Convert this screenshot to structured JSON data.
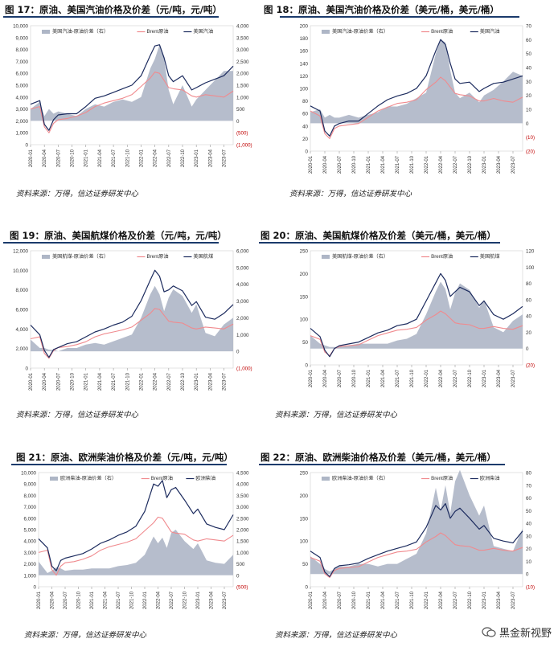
{
  "figures": [
    {
      "id": "f17",
      "title": "图 17：原油、美国汽油价格及价差（元/吨，元/吨）",
      "source": "资料来源：万得，信达证券研发中心"
    },
    {
      "id": "f18",
      "title": "图 18：原油、美国汽油价格及价差（美元/桶，美元/桶）",
      "source": "资料来源：万得，信达证券研发中心"
    },
    {
      "id": "f19",
      "title": "图 19：原油、美国航煤价格及价差（元/吨，元/吨）",
      "source": "资料来源：万得，信达证券研发中心"
    },
    {
      "id": "f20",
      "title": "图 20：原油、美国航煤价格及价差（美元/桶，美元/桶）",
      "source": "资料来源：万得，信达证券研发中心"
    },
    {
      "id": "f21",
      "title": "图 21：原油、欧洲柴油价格及价差（元/吨，元/吨）",
      "source": "资料来源：万得，信达证券研发中心"
    },
    {
      "id": "f22",
      "title": "图 22：原油、欧洲柴油价格及价差（美元/桶，美元/桶）",
      "source": "资料来源：万得，信达证券研发中心"
    }
  ],
  "watermark": "黑金新视野",
  "colors": {
    "spread": "#aeb6c6",
    "brent": "#f08a8e",
    "product": "#1c2b5e",
    "title_bar": "#1a3a6b"
  },
  "x_tick_labels": [
    "2020-01",
    "2020-04",
    "2020-07",
    "2020-10",
    "2021-01",
    "2021-04",
    "2021-07",
    "2021-10",
    "2022-01",
    "2022-04",
    "2022-07",
    "2022-10",
    "2023-01",
    "2023-04",
    "2023-07"
  ],
  "chart_data": [
    {
      "id": "f17",
      "type": "area",
      "legend": [
        "美国汽油-原油价差（右）",
        "Brent原油",
        "美国汽油"
      ],
      "left_ticks": [
        "10,000",
        "9,000",
        "8,000",
        "7,000",
        "6,000",
        "5,000",
        "4,000",
        "3,000",
        "2,000",
        "1,000",
        "0"
      ],
      "right_ticks": [
        "4,000",
        "3,500",
        "3,000",
        "2,500",
        "2,000",
        "1,500",
        "1,000",
        "500",
        "0",
        "(500)",
        "(1,000)"
      ],
      "ylim_left": [
        0,
        10000
      ],
      "ylim_right": [
        -1000,
        4000
      ],
      "x_months": [
        0,
        2,
        3,
        4,
        5,
        6,
        8,
        10,
        12,
        14,
        16,
        18,
        20,
        22,
        24,
        26,
        27,
        28,
        29,
        30,
        31,
        33,
        35,
        36,
        38,
        40,
        42,
        44
      ],
      "series": [
        {
          "name": "美国汽油",
          "axis": "left",
          "values": [
            3400,
            3700,
            1700,
            1200,
            2100,
            2500,
            2600,
            2600,
            3200,
            3900,
            4100,
            4400,
            4700,
            5000,
            5800,
            7500,
            8300,
            8400,
            7300,
            5800,
            5300,
            5800,
            4600,
            4800,
            5200,
            5500,
            5800,
            6600
          ]
        },
        {
          "name": "Brent原油",
          "axis": "left",
          "values": [
            3000,
            3200,
            1500,
            1000,
            1800,
            2100,
            2200,
            2400,
            2700,
            3200,
            3500,
            3700,
            3900,
            4200,
            4900,
            5600,
            6100,
            6000,
            5400,
            4800,
            4700,
            4600,
            4100,
            4000,
            4200,
            4100,
            4000,
            4500
          ]
        },
        {
          "name": "美国汽油-原油价差（右）",
          "axis": "right",
          "values": [
            500,
            800,
            200,
            500,
            300,
            400,
            300,
            200,
            500,
            700,
            600,
            800,
            900,
            800,
            1000,
            2200,
            2600,
            3200,
            2600,
            1300,
            700,
            1500,
            600,
            900,
            1300,
            1700,
            2100,
            2100
          ]
        }
      ]
    },
    {
      "id": "f18",
      "type": "area",
      "legend": [
        "美国汽油-原油价差（右）",
        "Brent原油",
        "美国汽油"
      ],
      "left_ticks": [
        "200",
        "180",
        "160",
        "140",
        "120",
        "100",
        "80",
        "60",
        "40",
        "20",
        "0"
      ],
      "right_ticks": [
        "70",
        "60",
        "50",
        "40",
        "30",
        "20",
        "10",
        "0",
        "(10)",
        "(20)"
      ],
      "ylim_left": [
        0,
        200
      ],
      "ylim_right": [
        -20,
        70
      ],
      "x_months": [
        0,
        2,
        3,
        4,
        5,
        6,
        8,
        10,
        12,
        14,
        16,
        18,
        20,
        22,
        24,
        26,
        27,
        28,
        29,
        30,
        31,
        33,
        35,
        36,
        38,
        40,
        42,
        44
      ],
      "series": [
        {
          "name": "美国汽油",
          "axis": "left",
          "values": [
            72,
            64,
            32,
            24,
            40,
            44,
            48,
            48,
            60,
            72,
            82,
            88,
            92,
            100,
            120,
            160,
            178,
            170,
            140,
            115,
            108,
            110,
            95,
            100,
            108,
            110,
            115,
            120
          ]
        },
        {
          "name": "Brent原油",
          "axis": "left",
          "values": [
            64,
            56,
            28,
            20,
            36,
            40,
            42,
            44,
            54,
            64,
            70,
            76,
            78,
            82,
            98,
            110,
            118,
            112,
            102,
            92,
            90,
            88,
            80,
            80,
            84,
            80,
            78,
            86
          ]
        },
        {
          "name": "美国汽油-原油价差（右）",
          "axis": "right",
          "values": [
            8,
            10,
            4,
            6,
            4,
            4,
            6,
            4,
            6,
            8,
            12,
            12,
            14,
            18,
            22,
            50,
            60,
            58,
            38,
            22,
            18,
            22,
            15,
            20,
            24,
            30,
            37,
            34
          ]
        }
      ]
    },
    {
      "id": "f19",
      "type": "area",
      "legend": [
        "美国航煤-原油价差（右）",
        "Brent原油",
        "美国航煤"
      ],
      "left_ticks": [
        "12,000",
        "10,000",
        "8,000",
        "6,000",
        "4,000",
        "2,000",
        "0"
      ],
      "right_ticks": [
        "6,000",
        "5,000",
        "4,000",
        "3,000",
        "2,000",
        "1,000",
        "0",
        "(1,000)"
      ],
      "ylim_left": [
        0,
        12000
      ],
      "ylim_right": [
        -1000,
        6000
      ],
      "x_months": [
        0,
        2,
        3,
        4,
        5,
        6,
        8,
        10,
        12,
        14,
        16,
        18,
        20,
        22,
        24,
        26,
        27,
        28,
        29,
        30,
        31,
        33,
        35,
        36,
        38,
        40,
        42,
        44
      ],
      "series": [
        {
          "name": "美国航煤",
          "axis": "left",
          "values": [
            4400,
            3400,
            1800,
            1100,
            1900,
            2100,
            2500,
            2700,
            3200,
            3700,
            4000,
            4400,
            4700,
            5300,
            6900,
            9000,
            10000,
            9400,
            7800,
            8000,
            8400,
            7900,
            6400,
            6800,
            5200,
            5000,
            5600,
            6500
          ]
        },
        {
          "name": "Brent原油",
          "axis": "left",
          "values": [
            3000,
            3200,
            1500,
            1000,
            1800,
            2100,
            2200,
            2400,
            2700,
            3200,
            3500,
            3700,
            3900,
            4200,
            4900,
            5600,
            6100,
            6000,
            5400,
            4800,
            4700,
            4600,
            4100,
            4000,
            4200,
            4100,
            4000,
            4500
          ]
        },
        {
          "name": "美国航煤-原油价差（右）",
          "axis": "right",
          "values": [
            700,
            200,
            200,
            100,
            100,
            0,
            200,
            200,
            400,
            500,
            400,
            600,
            800,
            1000,
            2000,
            3400,
            3900,
            3400,
            2400,
            3200,
            3700,
            3300,
            2300,
            2800,
            1100,
            900,
            1600,
            2000
          ]
        }
      ]
    },
    {
      "id": "f20",
      "type": "area",
      "legend": [
        "美国航煤-原油价差（右）",
        "Brent原油",
        "美国航煤"
      ],
      "left_ticks": [
        "250",
        "200",
        "150",
        "100",
        "50",
        "0"
      ],
      "right_ticks": [
        "120",
        "100",
        "80",
        "60",
        "40",
        "20",
        "0",
        "(20)"
      ],
      "ylim_left": [
        0,
        250
      ],
      "ylim_right": [
        -20,
        120
      ],
      "x_months": [
        0,
        2,
        3,
        4,
        5,
        6,
        8,
        10,
        12,
        14,
        16,
        18,
        20,
        22,
        24,
        26,
        27,
        28,
        29,
        30,
        31,
        33,
        35,
        36,
        38,
        40,
        42,
        44
      ],
      "series": [
        {
          "name": "美国航煤",
          "axis": "left",
          "values": [
            80,
            62,
            32,
            18,
            36,
            42,
            46,
            50,
            60,
            70,
            76,
            86,
            90,
            100,
            140,
            180,
            200,
            185,
            150,
            160,
            170,
            160,
            130,
            140,
            110,
            100,
            112,
            128
          ]
        },
        {
          "name": "Brent原油",
          "axis": "left",
          "values": [
            64,
            56,
            28,
            20,
            36,
            40,
            42,
            44,
            54,
            64,
            70,
            76,
            78,
            82,
            98,
            110,
            118,
            112,
            102,
            92,
            90,
            88,
            80,
            80,
            84,
            80,
            78,
            86
          ]
        },
        {
          "name": "美国航煤-原油价差（右）",
          "axis": "right",
          "values": [
            16,
            6,
            4,
            2,
            2,
            2,
            4,
            6,
            6,
            6,
            6,
            10,
            12,
            18,
            42,
            70,
            82,
            73,
            48,
            68,
            80,
            72,
            50,
            60,
            26,
            20,
            34,
            42
          ]
        }
      ]
    },
    {
      "id": "f21",
      "type": "area",
      "legend": [
        "欧洲柴油-原油价差（右）",
        "Brent原油",
        "欧洲柴油"
      ],
      "left_ticks": [
        "10,000",
        "9,000",
        "8,000",
        "7,000",
        "6,000",
        "5,000",
        "4,000",
        "3,000",
        "2,000",
        "1,000",
        "0"
      ],
      "right_ticks": [
        "4,500",
        "4,000",
        "3,500",
        "3,000",
        "2,500",
        "2,000",
        "1,500",
        "1,000",
        "500",
        "0",
        "(500)"
      ],
      "ylim_left": [
        0,
        10000
      ],
      "ylim_right": [
        -500,
        4500
      ],
      "x_months": [
        0,
        2,
        3,
        4,
        5,
        6,
        8,
        10,
        12,
        14,
        16,
        18,
        20,
        22,
        24,
        26,
        27,
        28,
        29,
        30,
        31,
        33,
        35,
        36,
        38,
        40,
        42,
        44
      ],
      "series": [
        {
          "name": "欧洲柴油",
          "axis": "left",
          "values": [
            4200,
            3400,
            1800,
            1400,
            2300,
            2500,
            2700,
            2900,
            3300,
            3800,
            4100,
            4500,
            4800,
            5300,
            6600,
            9000,
            8800,
            9300,
            7800,
            8500,
            8700,
            7600,
            6400,
            6800,
            5500,
            5200,
            5000,
            6300
          ]
        },
        {
          "name": "Brent原油",
          "axis": "left",
          "values": [
            3000,
            3200,
            1500,
            1000,
            1800,
            2100,
            2200,
            2400,
            2700,
            3200,
            3500,
            3700,
            3900,
            4200,
            4900,
            5600,
            6100,
            6000,
            5400,
            4800,
            4700,
            4600,
            4100,
            4000,
            4200,
            4100,
            4000,
            4500
          ]
        },
        {
          "name": "欧洲柴油-原油价差（右）",
          "axis": "right",
          "values": [
            600,
            100,
            200,
            350,
            300,
            200,
            250,
            250,
            300,
            300,
            300,
            400,
            450,
            550,
            900,
            1700,
            1400,
            1650,
            1200,
            1850,
            2000,
            1500,
            1150,
            1400,
            650,
            550,
            500,
            900
          ]
        }
      ]
    },
    {
      "id": "f22",
      "type": "area",
      "legend": [
        "欧洲柴油-原油价差（右）",
        "Brent原油",
        "欧洲柴油"
      ],
      "left_ticks": [
        "250",
        "200",
        "150",
        "100",
        "50",
        "0"
      ],
      "right_ticks": [
        "80",
        "70",
        "60",
        "50",
        "40",
        "30",
        "20",
        "10",
        "0",
        "(10)"
      ],
      "ylim_left": [
        0,
        250
      ],
      "ylim_right": [
        -10,
        80
      ],
      "x_months": [
        0,
        2,
        3,
        4,
        5,
        6,
        8,
        10,
        12,
        14,
        16,
        18,
        20,
        22,
        24,
        26,
        27,
        28,
        29,
        30,
        31,
        33,
        35,
        36,
        38,
        40,
        42,
        44
      ],
      "series": [
        {
          "name": "欧洲柴油",
          "axis": "left",
          "values": [
            78,
            64,
            32,
            22,
            40,
            46,
            48,
            52,
            62,
            70,
            78,
            84,
            90,
            98,
            130,
            178,
            168,
            182,
            150,
            165,
            172,
            150,
            126,
            134,
            106,
            100,
            96,
            122
          ]
        },
        {
          "name": "Brent原油",
          "axis": "left",
          "values": [
            64,
            56,
            28,
            20,
            36,
            40,
            42,
            44,
            54,
            64,
            70,
            76,
            78,
            82,
            98,
            110,
            118,
            112,
            102,
            92,
            90,
            88,
            80,
            80,
            84,
            80,
            78,
            86
          ]
        },
        {
          "name": "欧洲柴油-原油价差（右）",
          "axis": "right",
          "values": [
            14,
            8,
            4,
            2,
            4,
            6,
            6,
            8,
            8,
            6,
            8,
            8,
            12,
            16,
            32,
            68,
            50,
            70,
            48,
            73,
            82,
            62,
            46,
            54,
            22,
            20,
            18,
            36
          ]
        }
      ]
    }
  ]
}
